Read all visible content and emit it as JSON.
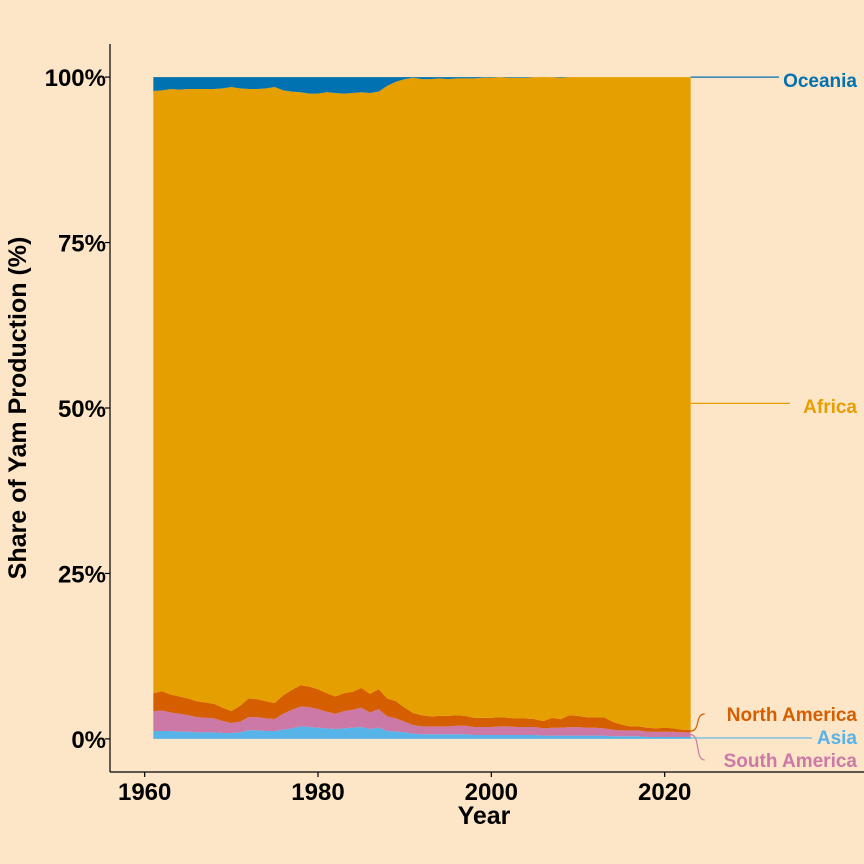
{
  "chart_data": {
    "type": "area",
    "stacked": true,
    "normalized": true,
    "xlabel": "Year",
    "ylabel": "Share of Yam Production (%)",
    "xlim": [
      1956,
      2043
    ],
    "ylim": [
      -5,
      105
    ],
    "x_ticks": [
      1960,
      1980,
      2000,
      2020
    ],
    "x_tick_labels": [
      "1960",
      "1980",
      "2000",
      "2020"
    ],
    "y_ticks": [
      0,
      25,
      50,
      75,
      100
    ],
    "y_tick_labels": [
      "0%",
      "25%",
      "50%",
      "75%",
      "100%"
    ],
    "grid": false,
    "legend": "direct labels at right",
    "x": [
      1961,
      1962,
      1963,
      1964,
      1965,
      1966,
      1967,
      1968,
      1969,
      1970,
      1971,
      1972,
      1973,
      1974,
      1975,
      1976,
      1977,
      1978,
      1979,
      1980,
      1981,
      1982,
      1983,
      1984,
      1985,
      1986,
      1987,
      1988,
      1989,
      1990,
      1991,
      1992,
      1993,
      1994,
      1995,
      1996,
      1997,
      1998,
      1999,
      2000,
      2001,
      2002,
      2003,
      2004,
      2005,
      2006,
      2007,
      2008,
      2009,
      2010,
      2011,
      2012,
      2013,
      2014,
      2015,
      2016,
      2017,
      2018,
      2019,
      2020,
      2021,
      2022,
      2023
    ],
    "series": [
      {
        "name": "Asia",
        "color": "#56B4E9",
        "values": [
          1.2,
          1.2,
          1.2,
          1.1,
          1.1,
          1.0,
          1.0,
          1.0,
          0.9,
          0.9,
          1.0,
          1.3,
          1.3,
          1.2,
          1.2,
          1.4,
          1.6,
          1.9,
          1.8,
          1.7,
          1.6,
          1.5,
          1.6,
          1.7,
          1.8,
          1.5,
          1.7,
          1.2,
          1.1,
          1.0,
          0.8,
          0.7,
          0.7,
          0.7,
          0.7,
          0.7,
          0.7,
          0.6,
          0.6,
          0.6,
          0.6,
          0.6,
          0.6,
          0.6,
          0.6,
          0.5,
          0.5,
          0.5,
          0.5,
          0.5,
          0.5,
          0.5,
          0.5,
          0.4,
          0.4,
          0.4,
          0.4,
          0.3,
          0.3,
          0.3,
          0.3,
          0.3,
          0.3
        ]
      },
      {
        "name": "South America",
        "color": "#CC79A7",
        "values": [
          3.0,
          3.1,
          2.8,
          2.7,
          2.5,
          2.3,
          2.2,
          2.1,
          1.8,
          1.5,
          1.6,
          2.0,
          2.0,
          1.9,
          1.8,
          2.4,
          2.8,
          3.0,
          3.0,
          2.8,
          2.5,
          2.3,
          2.6,
          2.7,
          2.9,
          2.5,
          2.8,
          2.2,
          2.0,
          1.6,
          1.3,
          1.2,
          1.2,
          1.2,
          1.2,
          1.3,
          1.3,
          1.2,
          1.2,
          1.2,
          1.3,
          1.3,
          1.2,
          1.2,
          1.2,
          1.1,
          1.2,
          1.2,
          1.3,
          1.3,
          1.2,
          1.2,
          1.1,
          1.0,
          0.9,
          0.9,
          0.9,
          0.8,
          0.8,
          0.8,
          0.8,
          0.7,
          0.7
        ]
      },
      {
        "name": "North America",
        "color": "#D55E00",
        "values": [
          2.7,
          2.9,
          2.7,
          2.6,
          2.5,
          2.4,
          2.3,
          2.2,
          2.0,
          1.8,
          2.4,
          2.8,
          2.7,
          2.6,
          2.4,
          2.8,
          3.0,
          3.2,
          3.1,
          3.0,
          2.8,
          2.6,
          2.7,
          2.7,
          3.0,
          2.8,
          3.0,
          2.7,
          2.6,
          2.1,
          1.8,
          1.7,
          1.5,
          1.6,
          1.6,
          1.6,
          1.5,
          1.4,
          1.4,
          1.4,
          1.4,
          1.3,
          1.3,
          1.3,
          1.2,
          1.1,
          1.5,
          1.3,
          1.8,
          1.7,
          1.6,
          1.6,
          1.7,
          1.2,
          0.9,
          0.6,
          0.6,
          0.6,
          0.5,
          0.6,
          0.5,
          0.4,
          0.4
        ]
      },
      {
        "name": "Africa",
        "color": "#E69F00",
        "values": [
          91.0,
          90.8,
          91.5,
          91.7,
          92.1,
          92.5,
          92.7,
          92.9,
          93.6,
          94.3,
          93.3,
          92.1,
          92.2,
          92.6,
          93.1,
          91.4,
          90.4,
          89.6,
          89.6,
          90.0,
          90.8,
          91.2,
          90.6,
          90.5,
          90.0,
          90.8,
          90.3,
          92.6,
          93.6,
          95.0,
          96.3,
          96.6,
          96.8,
          96.8,
          96.7,
          96.7,
          96.8,
          97.1,
          97.2,
          97.2,
          97.2,
          97.3,
          97.3,
          97.3,
          97.5,
          97.8,
          97.4,
          97.7,
          97.0,
          97.1,
          97.4,
          97.4,
          97.4,
          98.2,
          98.6,
          98.9,
          98.9,
          99.1,
          99.2,
          99.1,
          99.2,
          99.4,
          99.4
        ]
      },
      {
        "name": "Oceania",
        "color": "#0072B2",
        "values": [
          2.1,
          2.0,
          1.8,
          1.9,
          1.8,
          1.8,
          1.8,
          1.8,
          1.7,
          1.5,
          1.7,
          1.8,
          1.8,
          1.7,
          1.5,
          2.0,
          2.2,
          2.3,
          2.5,
          2.5,
          2.3,
          2.4,
          2.5,
          2.4,
          2.3,
          2.4,
          2.2,
          1.3,
          0.7,
          0.3,
          0.1,
          0.3,
          0.3,
          0.2,
          0.3,
          0.2,
          0.2,
          0.2,
          0.1,
          0.1,
          0.0,
          0.1,
          0.1,
          0.1,
          0.0,
          0.0,
          0.0,
          0.1,
          0.0,
          0.0,
          0.0,
          0.0,
          0.0,
          0.0,
          0.0,
          0.0,
          0.0,
          0.0,
          0.0,
          0.0,
          0.0,
          0.0,
          0.0
        ]
      }
    ],
    "label_order_top_to_bottom": [
      "Oceania",
      "Africa",
      "North America",
      "Asia",
      "South America"
    ]
  }
}
